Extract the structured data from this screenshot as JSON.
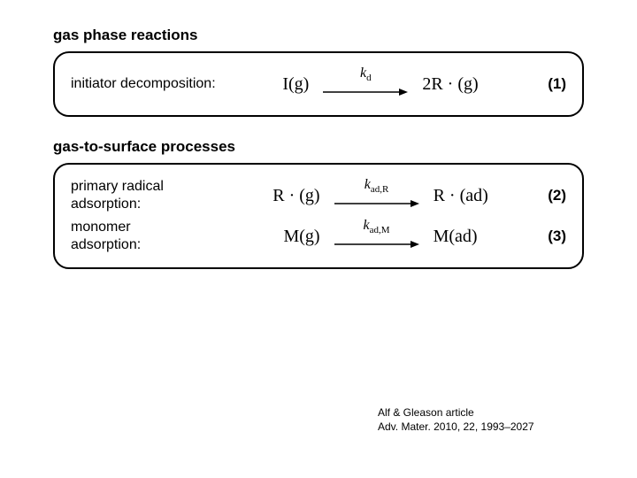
{
  "sections": [
    {
      "title": "gas phase reactions",
      "box": {
        "border_color": "#000000",
        "border_radius": 18,
        "rows": [
          {
            "label": "initiator decomposition:",
            "left": "I(g)",
            "rate_const_main": "k",
            "rate_const_sub": "d",
            "right": "2R · (g)",
            "eq_num": "(1)",
            "arrow_width": 96
          }
        ]
      }
    },
    {
      "title": "gas-to-surface processes",
      "box": {
        "border_color": "#000000",
        "border_radius": 18,
        "rows": [
          {
            "label": "primary radical\nadsorption:",
            "left": "R · (g)",
            "rate_const_main": "k",
            "rate_const_sub": "ad,R",
            "right": "R · (ad)",
            "eq_num": "(2)",
            "arrow_width": 96
          },
          {
            "label": "monomer\nadsorption:",
            "left": "M(g)",
            "rate_const_main": "k",
            "rate_const_sub": "ad,M",
            "right": "M(ad)",
            "eq_num": "(3)",
            "arrow_width": 96
          }
        ]
      }
    }
  ],
  "citation": {
    "line1": "Alf & Gleason article",
    "line2": "Adv. Mater. 2010, 22, 1993–2027"
  },
  "style": {
    "background": "#ffffff",
    "title_fontsize": 17,
    "label_fontsize": 16,
    "equation_fontsize": 20,
    "citation_fontsize": 12,
    "text_color": "#000000"
  }
}
